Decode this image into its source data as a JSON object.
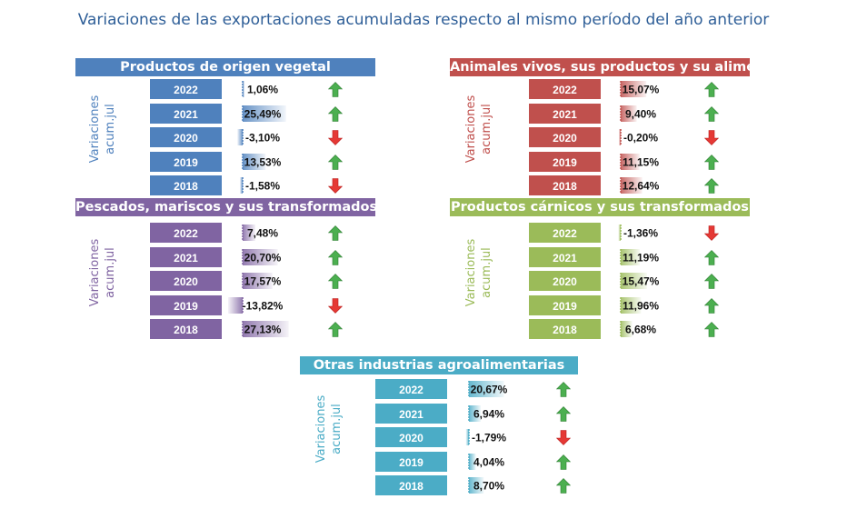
{
  "title": "Variaciones de las exportaciones acumuladas respecto al mismo período del año anterior",
  "colors": {
    "vegetal": "#4f81bd",
    "animales": "#c0504d",
    "pescados": "#8064a2",
    "carnicos": "#9bbb59",
    "otras": "#4bacc6",
    "up": "#4caf50",
    "down": "#e53935"
  },
  "chart_data": [
    {
      "type": "table",
      "title": "Productos de origen vegetal",
      "row_label": [
        "Variaciones",
        "acum.jul"
      ],
      "categories": [
        "2022",
        "2021",
        "2020",
        "2019",
        "2018"
      ],
      "values": [
        1.06,
        25.49,
        -3.1,
        13.53,
        -1.58
      ],
      "labels": [
        "1,06%",
        "25,49%",
        "-3,10%",
        "13,53%",
        "-1,58%"
      ],
      "trend": [
        "up",
        "up",
        "down",
        "up",
        "down"
      ],
      "color": "#4f81bd"
    },
    {
      "type": "table",
      "title": "Animales vivos, sus productos y su alimentación",
      "row_label": [
        "Variaciones",
        "acum.jul"
      ],
      "categories": [
        "2022",
        "2021",
        "2020",
        "2019",
        "2018"
      ],
      "values": [
        15.07,
        9.4,
        -0.2,
        11.15,
        12.64
      ],
      "labels": [
        "15,07%",
        "9,40%",
        "-0,20%",
        "11,15%",
        "12,64%"
      ],
      "trend": [
        "up",
        "up",
        "down",
        "up",
        "up"
      ],
      "color": "#c0504d"
    },
    {
      "type": "table",
      "title": "Pescados, mariscos y sus transformados",
      "row_label": [
        "Variaciones",
        "acum.jul"
      ],
      "categories": [
        "2022",
        "2021",
        "2020",
        "2019",
        "2018"
      ],
      "values": [
        7.48,
        20.7,
        17.57,
        -13.82,
        27.13
      ],
      "labels": [
        "7,48%",
        "20,70%",
        "17,57%",
        "-13,82%",
        "27,13%"
      ],
      "trend": [
        "up",
        "up",
        "up",
        "down",
        "up"
      ],
      "color": "#8064a2"
    },
    {
      "type": "table",
      "title": "Productos cárnicos y sus transformados",
      "row_label": [
        "Variaciones",
        "acum.jul"
      ],
      "categories": [
        "2022",
        "2021",
        "2020",
        "2019",
        "2018"
      ],
      "values": [
        -1.36,
        11.19,
        15.47,
        11.96,
        6.68
      ],
      "labels": [
        "-1,36%",
        "11,19%",
        "15,47%",
        "11,96%",
        "6,68%"
      ],
      "trend": [
        "down",
        "up",
        "up",
        "up",
        "up"
      ],
      "color": "#9bbb59"
    },
    {
      "type": "table",
      "title": "Otras industrias agroalimentarias",
      "row_label": [
        "Variaciones",
        "acum.jul"
      ],
      "categories": [
        "2022",
        "2021",
        "2020",
        "2019",
        "2018"
      ],
      "values": [
        20.67,
        6.94,
        -1.79,
        4.04,
        8.7
      ],
      "labels": [
        "20,67%",
        "6,94%",
        "-1,79%",
        "4,04%",
        "8,70%"
      ],
      "trend": [
        "up",
        "up",
        "down",
        "up",
        "up"
      ],
      "color": "#4bacc6"
    }
  ]
}
